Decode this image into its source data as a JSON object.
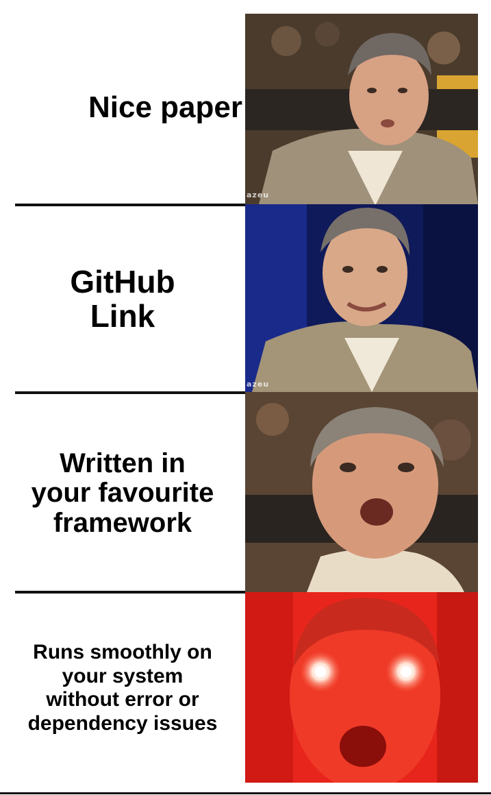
{
  "panels": [
    {
      "lines": [
        "Nice paper"
      ]
    },
    {
      "lines": [
        "GitHub",
        "Link"
      ]
    },
    {
      "lines": [
        "Written in",
        "your favourite",
        "framework"
      ]
    },
    {
      "lines": [
        "Runs smoothly on",
        "your system",
        "without error or",
        "dependency issues"
      ]
    }
  ],
  "watermarks": [
    "azeu",
    "azeu"
  ],
  "colors": {
    "background": "#ffffff",
    "text": "#000000",
    "divider": "#111111",
    "final_panel_red": "#e8251c"
  }
}
